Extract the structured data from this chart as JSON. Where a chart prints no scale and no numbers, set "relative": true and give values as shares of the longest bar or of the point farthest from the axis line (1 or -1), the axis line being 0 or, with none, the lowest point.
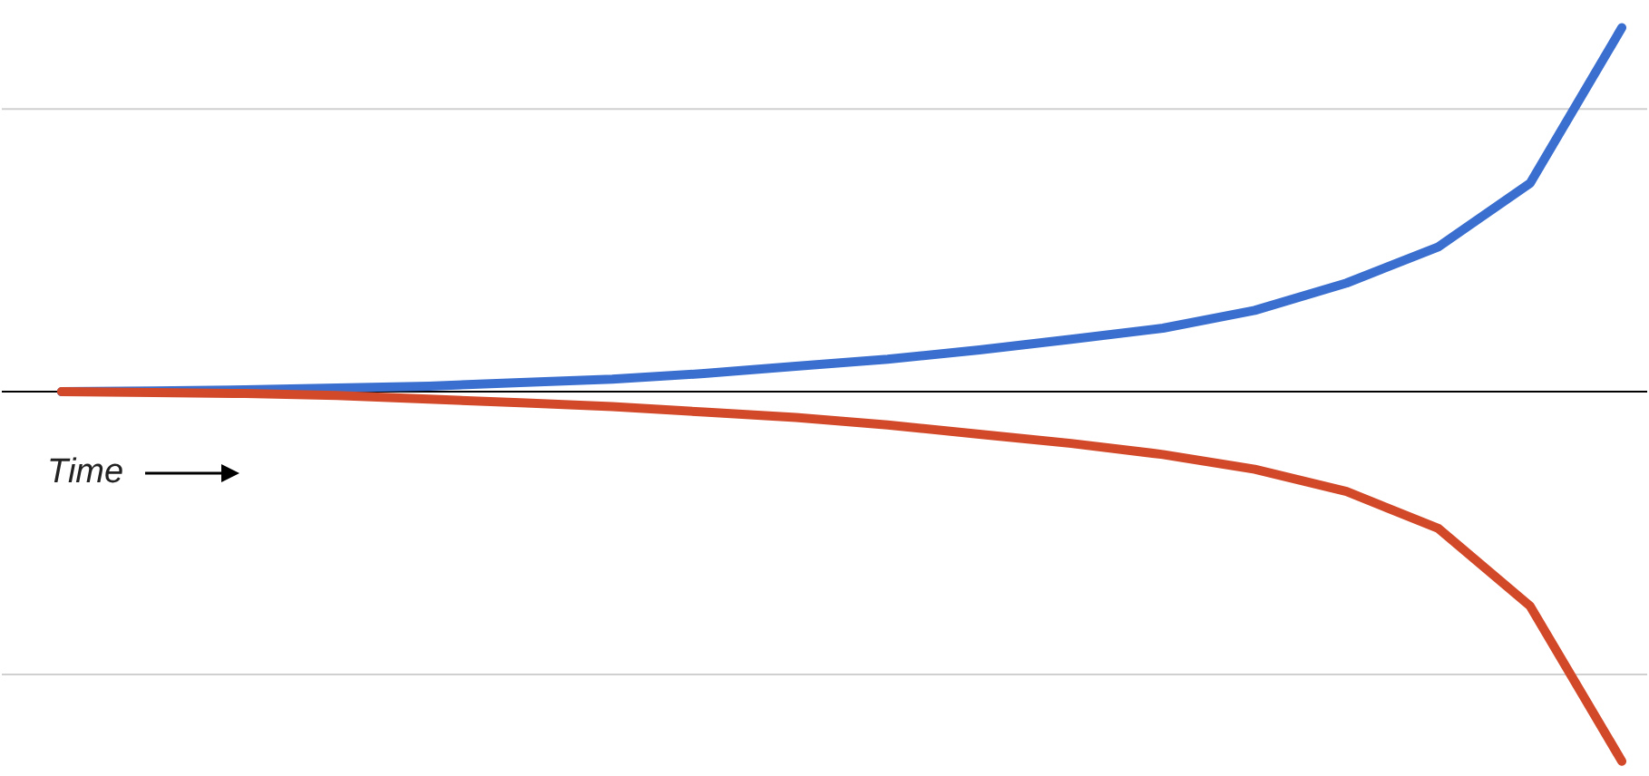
{
  "chart_data": {
    "type": "line",
    "relative": true,
    "annotations": [
      "Time"
    ],
    "ref_lines": [
      {
        "axis": "y",
        "value": 0.765,
        "color": "#d0d0d0"
      },
      {
        "axis": "y",
        "value": -0.765,
        "color": "#d0d0d0"
      }
    ],
    "categories": [
      null,
      null,
      null,
      null,
      null,
      null,
      null,
      null,
      null,
      null,
      null,
      null,
      null,
      null,
      null,
      null,
      null,
      null
    ],
    "series": [
      {
        "color": "#3a6fcf",
        "values": [
          0,
          0.002,
          0.005,
          0.01,
          0.015,
          0.025,
          0.034,
          0.049,
          0.069,
          0.088,
          0.113,
          0.142,
          0.172,
          0.22,
          0.294,
          0.392,
          0.564,
          0.985
        ]
      },
      {
        "color": "#d2492a",
        "values": [
          0,
          -0.002,
          -0.005,
          -0.01,
          -0.02,
          -0.03,
          -0.04,
          -0.055,
          -0.07,
          -0.09,
          -0.115,
          -0.14,
          -0.17,
          -0.21,
          -0.27,
          -0.37,
          -0.58,
          -1
        ]
      }
    ]
  }
}
